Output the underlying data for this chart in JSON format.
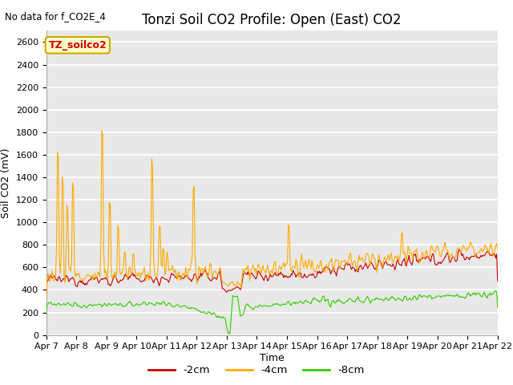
{
  "title": "Tonzi Soil CO2 Profile: Open (East) CO2",
  "subtitle": "No data for f_CO2E_4",
  "ylabel": "Soil CO2 (mV)",
  "xlabel": "Time",
  "ylim": [
    0,
    2700
  ],
  "yticks": [
    0,
    200,
    400,
    600,
    800,
    1000,
    1200,
    1400,
    1600,
    1800,
    2000,
    2200,
    2400,
    2600
  ],
  "legend_label": "TZ_soilco2",
  "series_labels": [
    "-2cm",
    "-4cm",
    "-8cm"
  ],
  "series_colors": [
    "#cc0000",
    "#ffaa00",
    "#33cc00"
  ],
  "fig_bg_color": "#ffffff",
  "plot_bg_color": "#e8e8e8",
  "grid_color": "#ffffff",
  "x_tick_labels": [
    "Apr 7",
    "Apr 8",
    "Apr 9",
    "Apr 10",
    "Apr 11",
    "Apr 12",
    "Apr 13",
    "Apr 14",
    "Apr 15",
    "Apr 16",
    "Apr 17",
    "Apr 18",
    "Apr 19",
    "Apr 20",
    "Apr 21",
    "Apr 22"
  ],
  "title_fontsize": 12,
  "axis_fontsize": 9,
  "tick_fontsize": 8,
  "legend_box_facecolor": "#ffffcc",
  "legend_box_edgecolor": "#ccaa00"
}
